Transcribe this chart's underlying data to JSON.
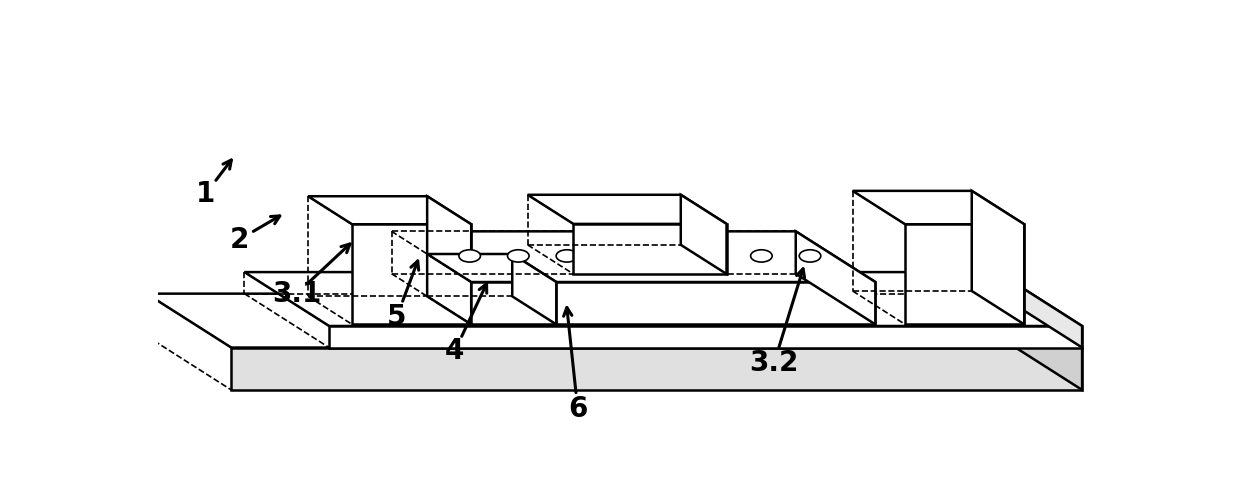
{
  "fig_width": 12.4,
  "fig_height": 4.9,
  "dpi": 100,
  "bg_color": "#ffffff",
  "line_color": "#000000",
  "lw": 1.8,
  "lw_thin": 1.2
}
